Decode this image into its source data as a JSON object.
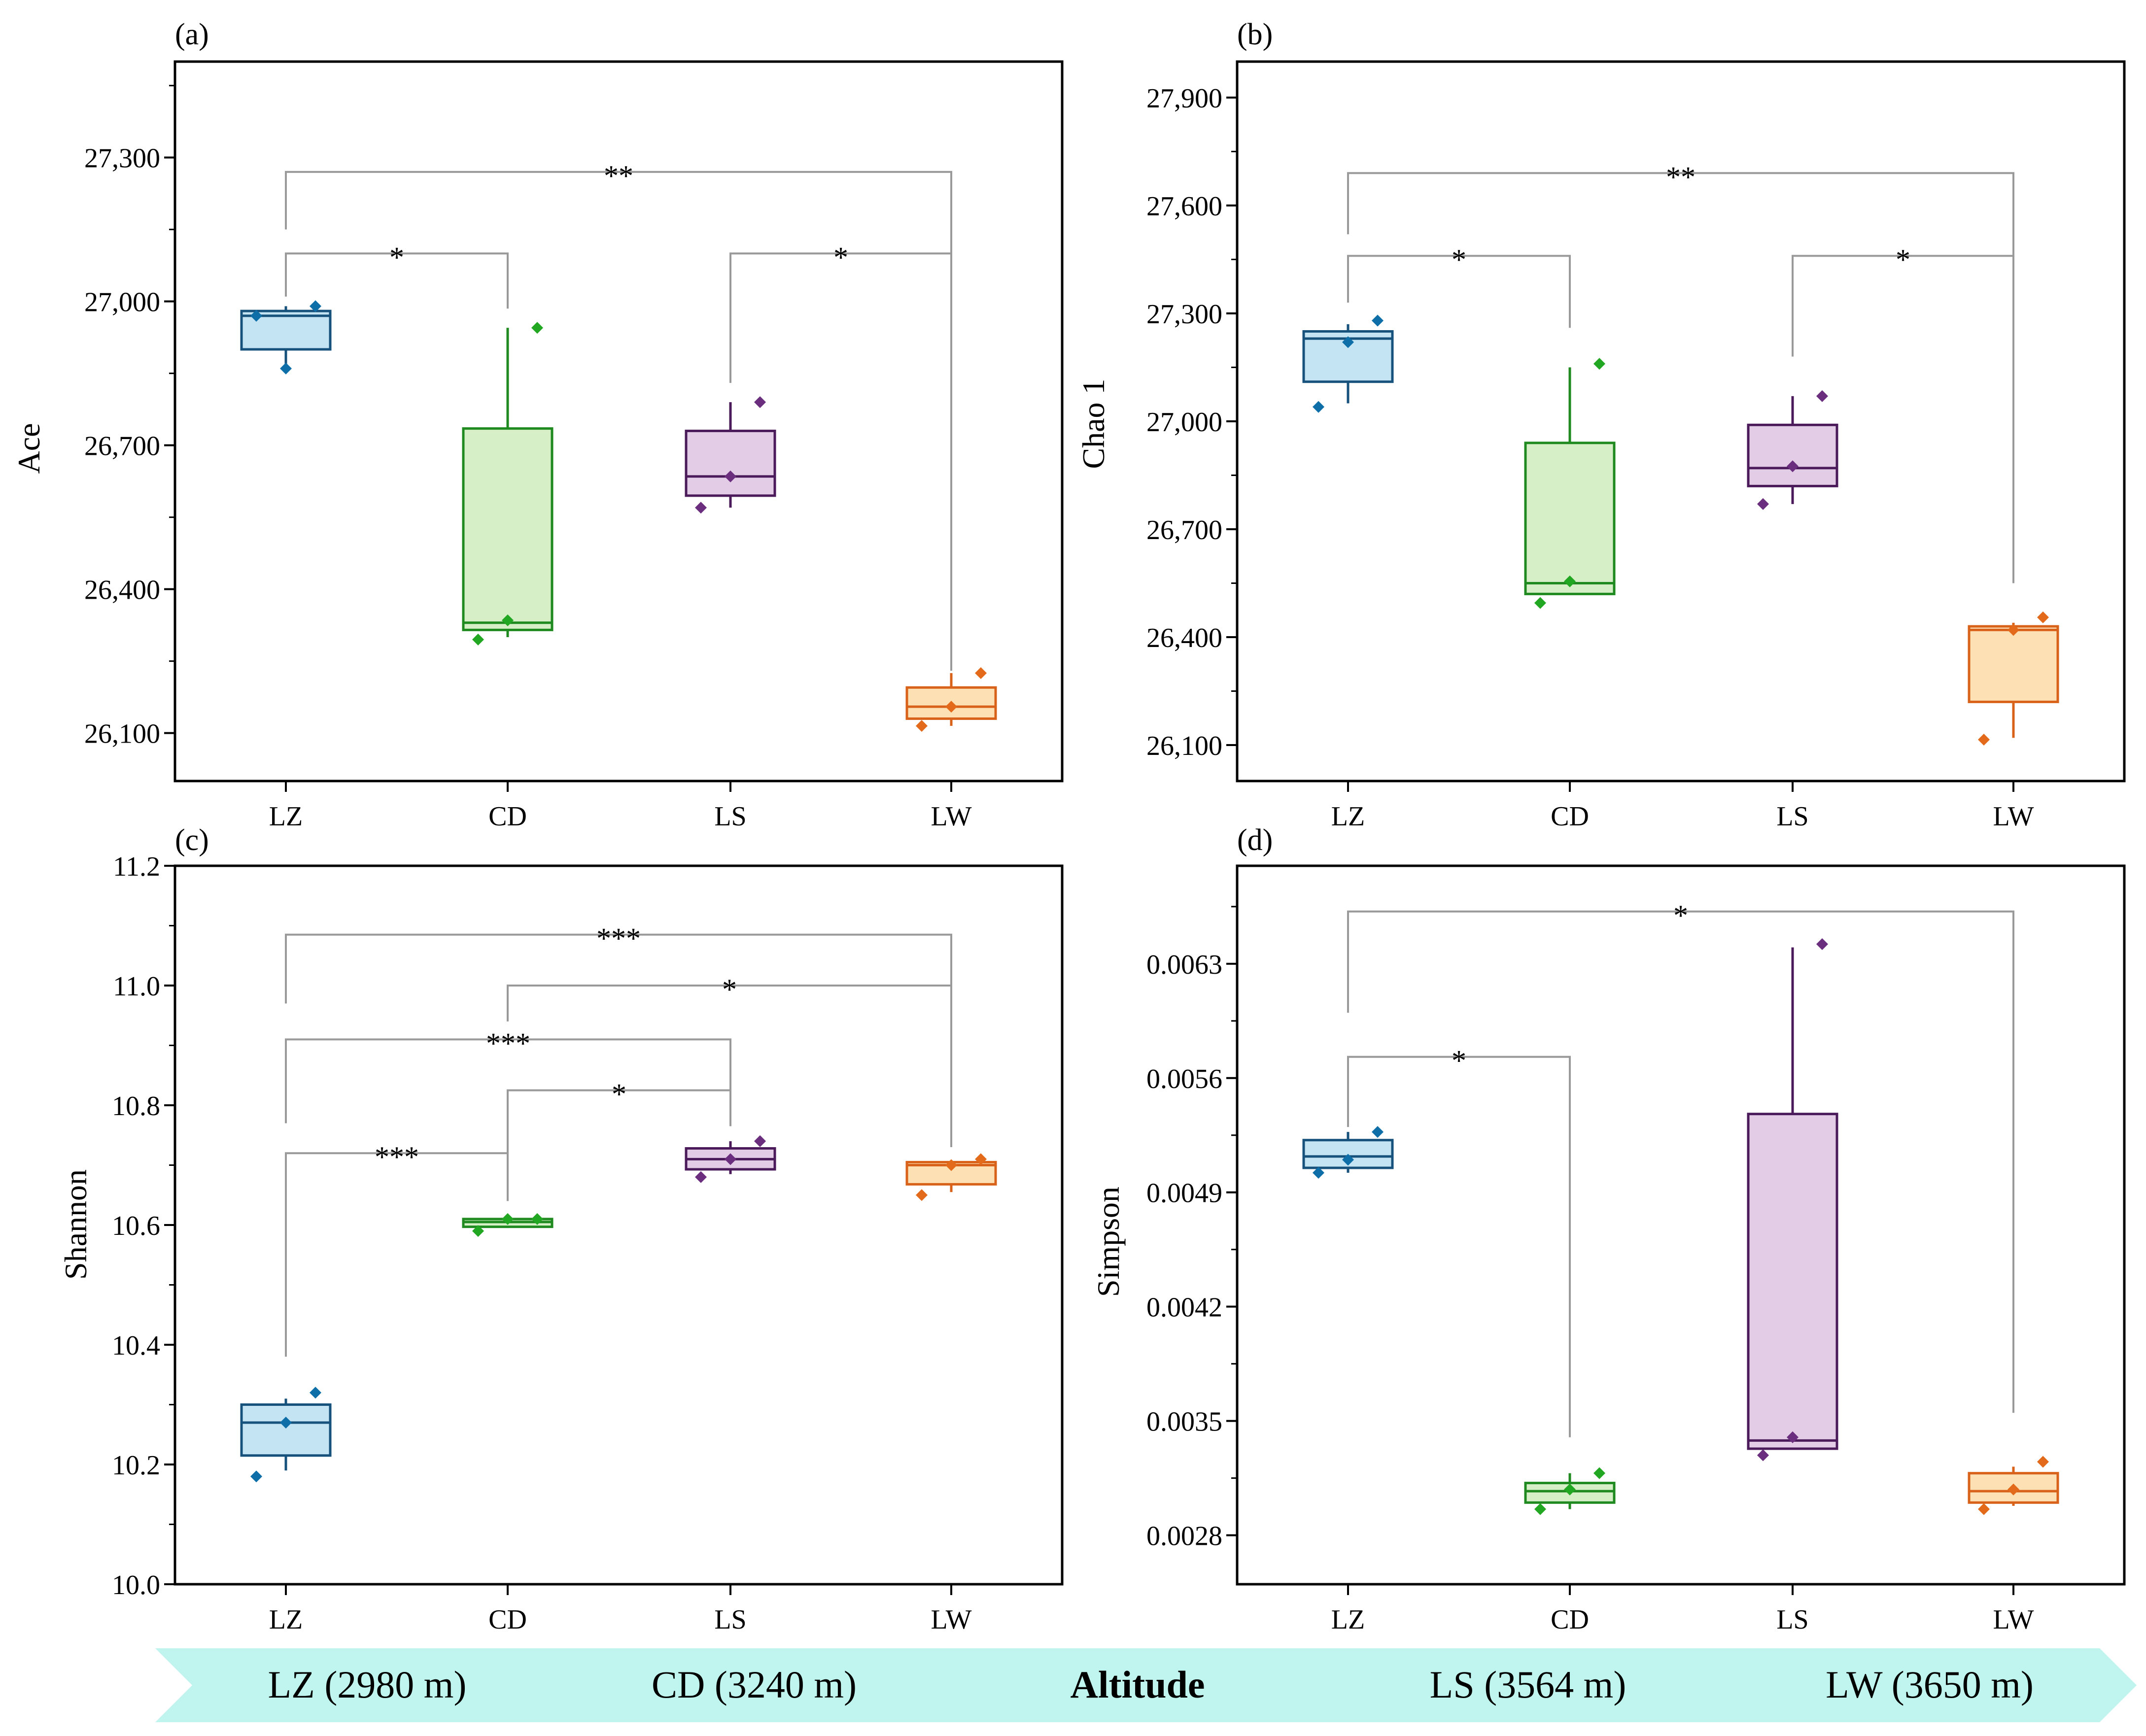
{
  "chart_data": [
    {
      "panel": "(a)",
      "type": "box",
      "ylabel": "Ace",
      "xlabel": "",
      "ylim": [
        26000,
        27500
      ],
      "yticks": [
        26100,
        26400,
        26700,
        27000,
        27300
      ],
      "tick_labels": [
        "26,100",
        "26,400",
        "26,700",
        "27,000",
        "27,300"
      ],
      "categories": [
        "LZ",
        "CD",
        "LS",
        "LW"
      ],
      "boxes": [
        {
          "group": "LZ",
          "whisker_low": 26870,
          "q1": 26900,
          "median": 26970,
          "q3": 26980,
          "whisker_high": 26990,
          "points": [
            26970,
            26860,
            26990
          ]
        },
        {
          "group": "CD",
          "whisker_low": 26300,
          "q1": 26315,
          "median": 26330,
          "q3": 26735,
          "whisker_high": 26945,
          "points": [
            26295,
            26335,
            26945
          ]
        },
        {
          "group": "LS",
          "whisker_low": 26570,
          "q1": 26595,
          "median": 26635,
          "q3": 26730,
          "whisker_high": 26790,
          "points": [
            26570,
            26635,
            26790
          ]
        },
        {
          "group": "LW",
          "whisker_low": 26115,
          "q1": 26130,
          "median": 26155,
          "q3": 26195,
          "whisker_high": 26225,
          "points": [
            26115,
            26155,
            26225
          ]
        }
      ],
      "brackets": [
        {
          "from": "LZ",
          "to": "LW",
          "label": "**",
          "y": 27270,
          "left_end": 27150,
          "right_end": 26230
        },
        {
          "from": "LZ",
          "to": "CD",
          "label": "*",
          "y": 27100,
          "left_end": 27010,
          "right_end": 26985
        },
        {
          "from": "LS",
          "to": "LW",
          "label": "*",
          "y": 27100,
          "left_end": 26830,
          "right_end": 26230
        }
      ]
    },
    {
      "panel": "(b)",
      "type": "box",
      "ylabel": "Chao 1",
      "xlabel": "",
      "ylim": [
        26000,
        28000
      ],
      "yticks": [
        26100,
        26400,
        26700,
        27000,
        27300,
        27600,
        27900
      ],
      "tick_labels": [
        "26,100",
        "26,400",
        "26,700",
        "27,000",
        "27,300",
        "27,600",
        "27,900"
      ],
      "categories": [
        "LZ",
        "CD",
        "LS",
        "LW"
      ],
      "boxes": [
        {
          "group": "LZ",
          "whisker_low": 27050,
          "q1": 27110,
          "median": 27230,
          "q3": 27250,
          "whisker_high": 27270,
          "points": [
            27040,
            27220,
            27280
          ]
        },
        {
          "group": "CD",
          "whisker_low": 26520,
          "q1": 26520,
          "median": 26550,
          "q3": 26940,
          "whisker_high": 27150,
          "points": [
            26495,
            26555,
            27160
          ]
        },
        {
          "group": "LS",
          "whisker_low": 26770,
          "q1": 26820,
          "median": 26870,
          "q3": 26990,
          "whisker_high": 27070,
          "points": [
            26770,
            26875,
            27070
          ]
        },
        {
          "group": "LW",
          "whisker_low": 26120,
          "q1": 26220,
          "median": 26420,
          "q3": 26430,
          "whisker_high": 26440,
          "points": [
            26115,
            26420,
            26455
          ]
        }
      ],
      "brackets": [
        {
          "from": "LZ",
          "to": "LW",
          "label": "**",
          "y": 27690,
          "left_end": 27520,
          "right_end": 26550
        },
        {
          "from": "LZ",
          "to": "CD",
          "label": "*",
          "y": 27460,
          "left_end": 27330,
          "right_end": 27260
        },
        {
          "from": "LS",
          "to": "LW",
          "label": "*",
          "y": 27460,
          "left_end": 27180,
          "right_end": 26550
        }
      ]
    },
    {
      "panel": "(c)",
      "type": "box",
      "ylabel": "Shannon",
      "xlabel": "",
      "ylim": [
        10.0,
        11.2
      ],
      "yticks": [
        10.0,
        10.2,
        10.4,
        10.6,
        10.8,
        11.0,
        11.2
      ],
      "tick_labels": [
        "10.0",
        "10.2",
        "10.4",
        "10.6",
        "10.8",
        "11.0",
        "11.2"
      ],
      "categories": [
        "LZ",
        "CD",
        "LS",
        "LW"
      ],
      "boxes": [
        {
          "group": "LZ",
          "whisker_low": 10.19,
          "q1": 10.215,
          "median": 10.27,
          "q3": 10.3,
          "whisker_high": 10.31,
          "points": [
            10.18,
            10.27,
            10.32
          ]
        },
        {
          "group": "CD",
          "whisker_low": 10.595,
          "q1": 10.597,
          "median": 10.605,
          "q3": 10.61,
          "whisker_high": 10.612,
          "points": [
            10.59,
            10.61,
            10.61
          ]
        },
        {
          "group": "LS",
          "whisker_low": 10.685,
          "q1": 10.693,
          "median": 10.71,
          "q3": 10.728,
          "whisker_high": 10.74,
          "points": [
            10.68,
            10.71,
            10.74
          ]
        },
        {
          "group": "LW",
          "whisker_low": 10.655,
          "q1": 10.668,
          "median": 10.7,
          "q3": 10.705,
          "whisker_high": 10.708,
          "points": [
            10.65,
            10.7,
            10.71
          ]
        }
      ],
      "brackets": [
        {
          "from": "LZ",
          "to": "LW",
          "label": "***",
          "y": 11.085,
          "left_end": 10.97,
          "right_end": 10.73
        },
        {
          "from": "CD",
          "to": "LW",
          "label": "*",
          "y": 11.0,
          "left_end": 10.94,
          "right_end": 10.73
        },
        {
          "from": "LZ",
          "to": "LS",
          "label": "***",
          "y": 10.91,
          "left_end": 10.77,
          "right_end": 10.765
        },
        {
          "from": "CD",
          "to": "LS",
          "label": "*",
          "y": 10.825,
          "left_end": 10.67,
          "right_end": 10.765
        },
        {
          "from": "LZ",
          "to": "CD",
          "label": "***",
          "y": 10.72,
          "left_end": 10.38,
          "right_end": 10.64
        }
      ]
    },
    {
      "panel": "(d)",
      "type": "box",
      "ylabel": "Simpson",
      "xlabel": "",
      "ylim": [
        0.0025,
        0.0069
      ],
      "yticks": [
        0.0028,
        0.0035,
        0.0042,
        0.0049,
        0.0056,
        0.0063
      ],
      "tick_labels": [
        "0.0028",
        "0.0035",
        "0.0042",
        "0.0049",
        "0.0056",
        "0.0063"
      ],
      "categories": [
        "LZ",
        "CD",
        "LS",
        "LW"
      ],
      "boxes": [
        {
          "group": "LZ",
          "whisker_low": 0.00502,
          "q1": 0.00505,
          "median": 0.00512,
          "q3": 0.00522,
          "whisker_high": 0.00527,
          "points": [
            0.00502,
            0.0051,
            0.00527
          ]
        },
        {
          "group": "CD",
          "whisker_low": 0.00296,
          "q1": 0.003,
          "median": 0.00307,
          "q3": 0.00312,
          "whisker_high": 0.00318,
          "points": [
            0.00296,
            0.00308,
            0.00318
          ]
        },
        {
          "group": "LS",
          "whisker_low": 0.00333,
          "q1": 0.00333,
          "median": 0.00338,
          "q3": 0.00538,
          "whisker_high": 0.0064,
          "points": [
            0.00329,
            0.0034,
            0.00642
          ]
        },
        {
          "group": "LW",
          "whisker_low": 0.00298,
          "q1": 0.003,
          "median": 0.00307,
          "q3": 0.00318,
          "whisker_high": 0.00322,
          "points": [
            0.00296,
            0.00308,
            0.00325
          ]
        }
      ],
      "brackets": [
        {
          "from": "LZ",
          "to": "LW",
          "label": "*",
          "y": 0.00662,
          "left_end": 0.006,
          "right_end": 0.00355
        },
        {
          "from": "LZ",
          "to": "CD",
          "label": "*",
          "y": 0.00573,
          "left_end": 0.0053,
          "right_end": 0.0034
        }
      ]
    }
  ],
  "colors": {
    "LZ": {
      "line": "#17527c",
      "fill": "#c4e4f3",
      "point": "#0e6fa8"
    },
    "CD": {
      "line": "#1f8a1f",
      "fill": "#d6efc7",
      "point": "#22a722"
    },
    "LS": {
      "line": "#4b1a5a",
      "fill": "#e3cde6",
      "point": "#6b2d7e"
    },
    "LW": {
      "line": "#d9621a",
      "fill": "#fde1b4",
      "point": "#e26a1a"
    },
    "bracket": "#9a9a9a",
    "banner": "#bff5ee"
  },
  "banner": {
    "items": [
      "LZ (2980 m)",
      "CD (3240 m)",
      "Altitude",
      "LS (3564 m)",
      "LW (3650 m)"
    ],
    "title": "Altitude"
  }
}
